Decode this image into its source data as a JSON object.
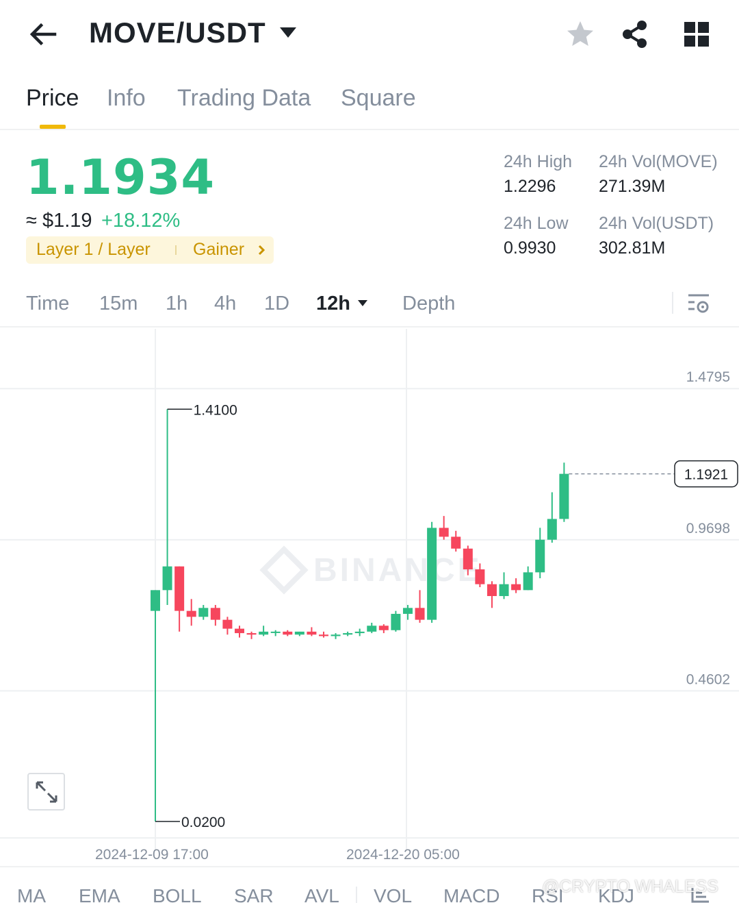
{
  "header": {
    "pair": "MOVE/USDT"
  },
  "tabs": [
    {
      "label": "Price"
    },
    {
      "label": "Info"
    },
    {
      "label": "Trading Data"
    },
    {
      "label": "Square"
    }
  ],
  "summary": {
    "last_price": "1.1934",
    "approx_usd": "≈ $1.19",
    "change_pct": "+18.12%",
    "tag_sector": "Layer 1 / Layer",
    "tag_gainer": "Gainer",
    "high_label": "24h High",
    "high_value": "1.2296",
    "low_label": "24h Low",
    "low_value": "0.9930",
    "vol_base_label": "24h Vol(MOVE)",
    "vol_base_value": "271.39M",
    "vol_quote_label": "24h Vol(USDT)",
    "vol_quote_value": "302.81M"
  },
  "intervals": [
    {
      "label": "Time"
    },
    {
      "label": "15m"
    },
    {
      "label": "1h"
    },
    {
      "label": "4h"
    },
    {
      "label": "1D"
    },
    {
      "label": "12h"
    },
    {
      "label": "Depth"
    }
  ],
  "colors": {
    "up": "#2ebd85",
    "down": "#f6465d",
    "accent": "#f0b90b",
    "muted": "#848e9c"
  },
  "chart_data": {
    "type": "candlestick",
    "interval": "12h",
    "y_ticks": [
      "1.4795",
      "0.9698",
      "0.4602"
    ],
    "ylim": [
      -0.0355,
      1.5816
    ],
    "x_labels": [
      "2024-12-09 17:00",
      "2024-12-20 05:00"
    ],
    "max_marker": "1.4100",
    "min_marker": "0.0200",
    "last_price_marker": "1.1921",
    "watermark": "BINANCE",
    "candles": [
      {
        "o": 0.73,
        "h": 0.8,
        "l": 0.02,
        "c": 0.8
      },
      {
        "o": 0.8,
        "h": 1.41,
        "l": 0.75,
        "c": 0.88
      },
      {
        "o": 0.88,
        "h": 0.88,
        "l": 0.66,
        "c": 0.73
      },
      {
        "o": 0.73,
        "h": 0.77,
        "l": 0.68,
        "c": 0.71
      },
      {
        "o": 0.71,
        "h": 0.75,
        "l": 0.7,
        "c": 0.74
      },
      {
        "o": 0.74,
        "h": 0.75,
        "l": 0.68,
        "c": 0.7
      },
      {
        "o": 0.7,
        "h": 0.71,
        "l": 0.65,
        "c": 0.67
      },
      {
        "o": 0.67,
        "h": 0.68,
        "l": 0.64,
        "c": 0.655
      },
      {
        "o": 0.655,
        "h": 0.66,
        "l": 0.635,
        "c": 0.65
      },
      {
        "o": 0.65,
        "h": 0.68,
        "l": 0.645,
        "c": 0.66
      },
      {
        "o": 0.66,
        "h": 0.665,
        "l": 0.645,
        "c": 0.66
      },
      {
        "o": 0.66,
        "h": 0.665,
        "l": 0.645,
        "c": 0.65
      },
      {
        "o": 0.65,
        "h": 0.66,
        "l": 0.645,
        "c": 0.66
      },
      {
        "o": 0.66,
        "h": 0.675,
        "l": 0.645,
        "c": 0.65
      },
      {
        "o": 0.65,
        "h": 0.66,
        "l": 0.64,
        "c": 0.645
      },
      {
        "o": 0.645,
        "h": 0.655,
        "l": 0.635,
        "c": 0.65
      },
      {
        "o": 0.65,
        "h": 0.66,
        "l": 0.645,
        "c": 0.655
      },
      {
        "o": 0.655,
        "h": 0.67,
        "l": 0.645,
        "c": 0.66
      },
      {
        "o": 0.66,
        "h": 0.69,
        "l": 0.655,
        "c": 0.68
      },
      {
        "o": 0.68,
        "h": 0.685,
        "l": 0.655,
        "c": 0.665
      },
      {
        "o": 0.665,
        "h": 0.73,
        "l": 0.66,
        "c": 0.72
      },
      {
        "o": 0.72,
        "h": 0.75,
        "l": 0.7,
        "c": 0.74
      },
      {
        "o": 0.74,
        "h": 0.8,
        "l": 0.69,
        "c": 0.7
      },
      {
        "o": 0.7,
        "h": 1.03,
        "l": 0.69,
        "c": 1.01
      },
      {
        "o": 1.01,
        "h": 1.05,
        "l": 0.97,
        "c": 0.98
      },
      {
        "o": 0.98,
        "h": 1.0,
        "l": 0.93,
        "c": 0.94
      },
      {
        "o": 0.94,
        "h": 0.95,
        "l": 0.85,
        "c": 0.87
      },
      {
        "o": 0.87,
        "h": 0.89,
        "l": 0.81,
        "c": 0.82
      },
      {
        "o": 0.82,
        "h": 0.83,
        "l": 0.74,
        "c": 0.78
      },
      {
        "o": 0.78,
        "h": 0.86,
        "l": 0.77,
        "c": 0.82
      },
      {
        "o": 0.82,
        "h": 0.84,
        "l": 0.79,
        "c": 0.8
      },
      {
        "o": 0.8,
        "h": 0.88,
        "l": 0.8,
        "c": 0.86
      },
      {
        "o": 0.86,
        "h": 1.01,
        "l": 0.84,
        "c": 0.97
      },
      {
        "o": 0.97,
        "h": 1.13,
        "l": 0.96,
        "c": 1.04
      },
      {
        "o": 1.04,
        "h": 1.23,
        "l": 1.03,
        "c": 1.1921
      }
    ]
  },
  "indicators": [
    {
      "label": "MA"
    },
    {
      "label": "EMA"
    },
    {
      "label": "BOLL"
    },
    {
      "label": "SAR"
    },
    {
      "label": "AVL"
    },
    {
      "label": "VOL"
    },
    {
      "label": "MACD"
    },
    {
      "label": "RSI"
    },
    {
      "label": "KDJ"
    }
  ],
  "watermark_credit": "@CRYPTO WHALESS"
}
